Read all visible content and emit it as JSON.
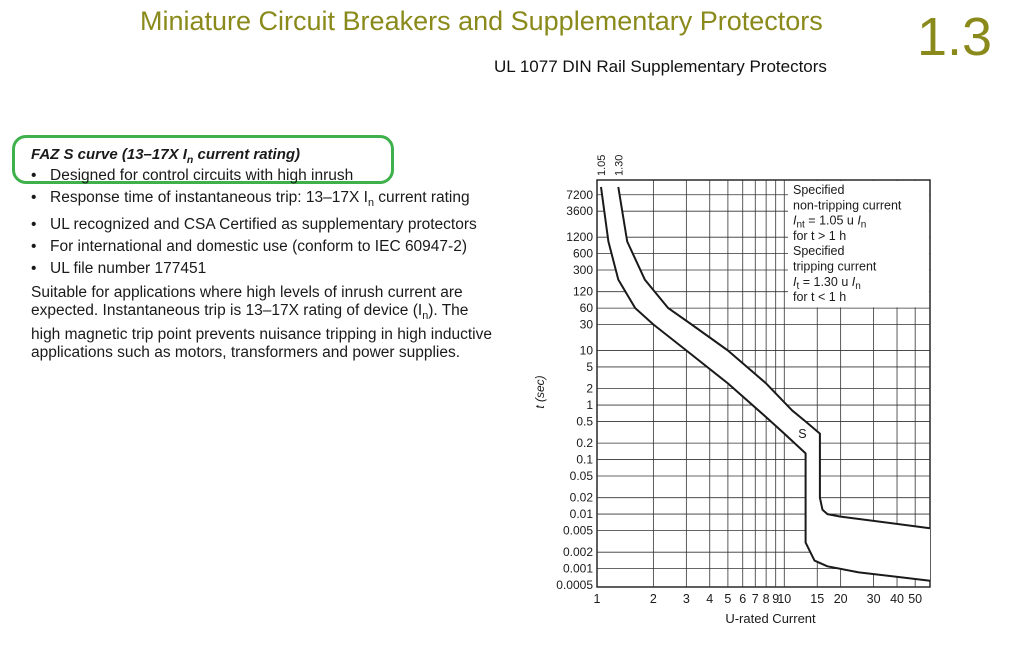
{
  "header": {
    "title": "Miniature Circuit Breakers and Supplementary Protectors",
    "section": "1.3",
    "subtitle": "UL 1077 DIN Rail Supplementary Protectors"
  },
  "intro": {
    "heading_prefix": "FAZ S curve (13–17X I",
    "heading_sub": "n",
    "heading_suffix": " current rating)",
    "bullets": [
      {
        "text": "Designed for control circuits with high inrush"
      },
      {
        "text": "Response time of instantaneous trip: 13–17X I",
        "sub": "n",
        "after": " current rating"
      },
      {
        "text": "UL recognized and CSA Certified as supplementary protectors"
      },
      {
        "text": "For international and domestic use (conform to IEC 60947-2)"
      },
      {
        "text": "UL file number 177451"
      }
    ],
    "para_before": "Suitable for applications where high levels of inrush current are expected. Instantaneous trip is 13–17X rating of device (I",
    "para_sub": "n",
    "para_after": "). The high magnetic trip point prevents nuisance tripping in high inductive applications such as motors, transformers and power supplies."
  },
  "colors": {
    "title": "#8a8a1c",
    "highlight": "#3fb14c",
    "text": "#1a1a1a"
  },
  "chart_data": {
    "type": "line",
    "xlabel": "U-rated Current",
    "ylabel": "t (sec)",
    "x_scale": "log",
    "y_scale": "log",
    "xlim": [
      1,
      60
    ],
    "ylim": [
      0.0005,
      10000
    ],
    "x_ticks": [
      1,
      2,
      3,
      4,
      5,
      6,
      7,
      8,
      9,
      10,
      15,
      20,
      30,
      40,
      50
    ],
    "x_tick_labels": [
      "1",
      "2",
      "3",
      "4",
      "5",
      "6",
      "7",
      "8",
      "9",
      "10",
      "15",
      "20",
      "30",
      "40",
      "50"
    ],
    "y_ticks": [
      7200,
      3600,
      1200,
      600,
      300,
      120,
      60,
      30,
      10,
      5,
      2,
      1,
      0.5,
      0.2,
      0.1,
      0.05,
      0.02,
      0.01,
      0.005,
      0.002,
      0.001,
      0.0005
    ],
    "y_tick_labels": [
      "7200",
      "3600",
      "1200",
      "600",
      "300",
      "120",
      "60",
      "30",
      "10",
      "5",
      "2",
      "1",
      "0.5",
      "0.2",
      "0.1",
      "0.05",
      "0.02",
      "0.01",
      "0.005",
      "0.002",
      "0.001",
      "0.0005"
    ],
    "vertical_markers": [
      {
        "x": 1.05,
        "label": "1.05"
      },
      {
        "x": 1.3,
        "label": "1.30"
      }
    ],
    "band_label": "S",
    "band_label_point": {
      "x": 12.5,
      "y": 0.25
    },
    "series": [
      {
        "points": [
          [
            1.05,
            10000
          ],
          [
            1.15,
            1000
          ],
          [
            1.3,
            200
          ],
          [
            1.6,
            60
          ],
          [
            2,
            30
          ],
          [
            3,
            10
          ],
          [
            5,
            2.5
          ],
          [
            8,
            0.6
          ],
          [
            10,
            0.3
          ],
          [
            13,
            0.13
          ],
          [
            13,
            0.003
          ],
          [
            14.5,
            0.0014
          ],
          [
            17,
            0.0011
          ],
          [
            25,
            0.00085
          ],
          [
            60,
            0.0006
          ]
        ]
      },
      {
        "points": [
          [
            1.3,
            10000
          ],
          [
            1.45,
            1000
          ],
          [
            1.8,
            200
          ],
          [
            2.4,
            60
          ],
          [
            3.2,
            30
          ],
          [
            5,
            10
          ],
          [
            8,
            2.5
          ],
          [
            11,
            0.8
          ],
          [
            13,
            0.5
          ],
          [
            15.5,
            0.3
          ],
          [
            15.5,
            0.02
          ],
          [
            16,
            0.012
          ],
          [
            17,
            0.01
          ],
          [
            20,
            0.009
          ],
          [
            60,
            0.0055
          ]
        ]
      }
    ],
    "legend_lines": [
      {
        "segments": [
          {
            "t": "Specified"
          }
        ]
      },
      {
        "segments": [
          {
            "t": "non-tripping current"
          }
        ]
      },
      {
        "segments": [
          {
            "t": "I",
            "style": "italic"
          },
          {
            "t": "nt",
            "style": "sub"
          },
          {
            "t": " = 1.05 u  "
          },
          {
            "t": "I",
            "style": "italic"
          },
          {
            "t": "n",
            "style": "sub"
          }
        ]
      },
      {
        "segments": [
          {
            "t": "for t > 1 h"
          }
        ]
      },
      {
        "segments": [
          {
            "t": "Specified"
          }
        ]
      },
      {
        "segments": [
          {
            "t": "tripping current"
          }
        ]
      },
      {
        "segments": [
          {
            "t": "I",
            "style": "italic"
          },
          {
            "t": "t",
            "style": "sub"
          },
          {
            "t": " = 1.30 u  "
          },
          {
            "t": "I",
            "style": "italic"
          },
          {
            "t": "n",
            "style": "sub"
          }
        ]
      },
      {
        "segments": [
          {
            "t": "for t < 1 h"
          }
        ]
      }
    ]
  }
}
